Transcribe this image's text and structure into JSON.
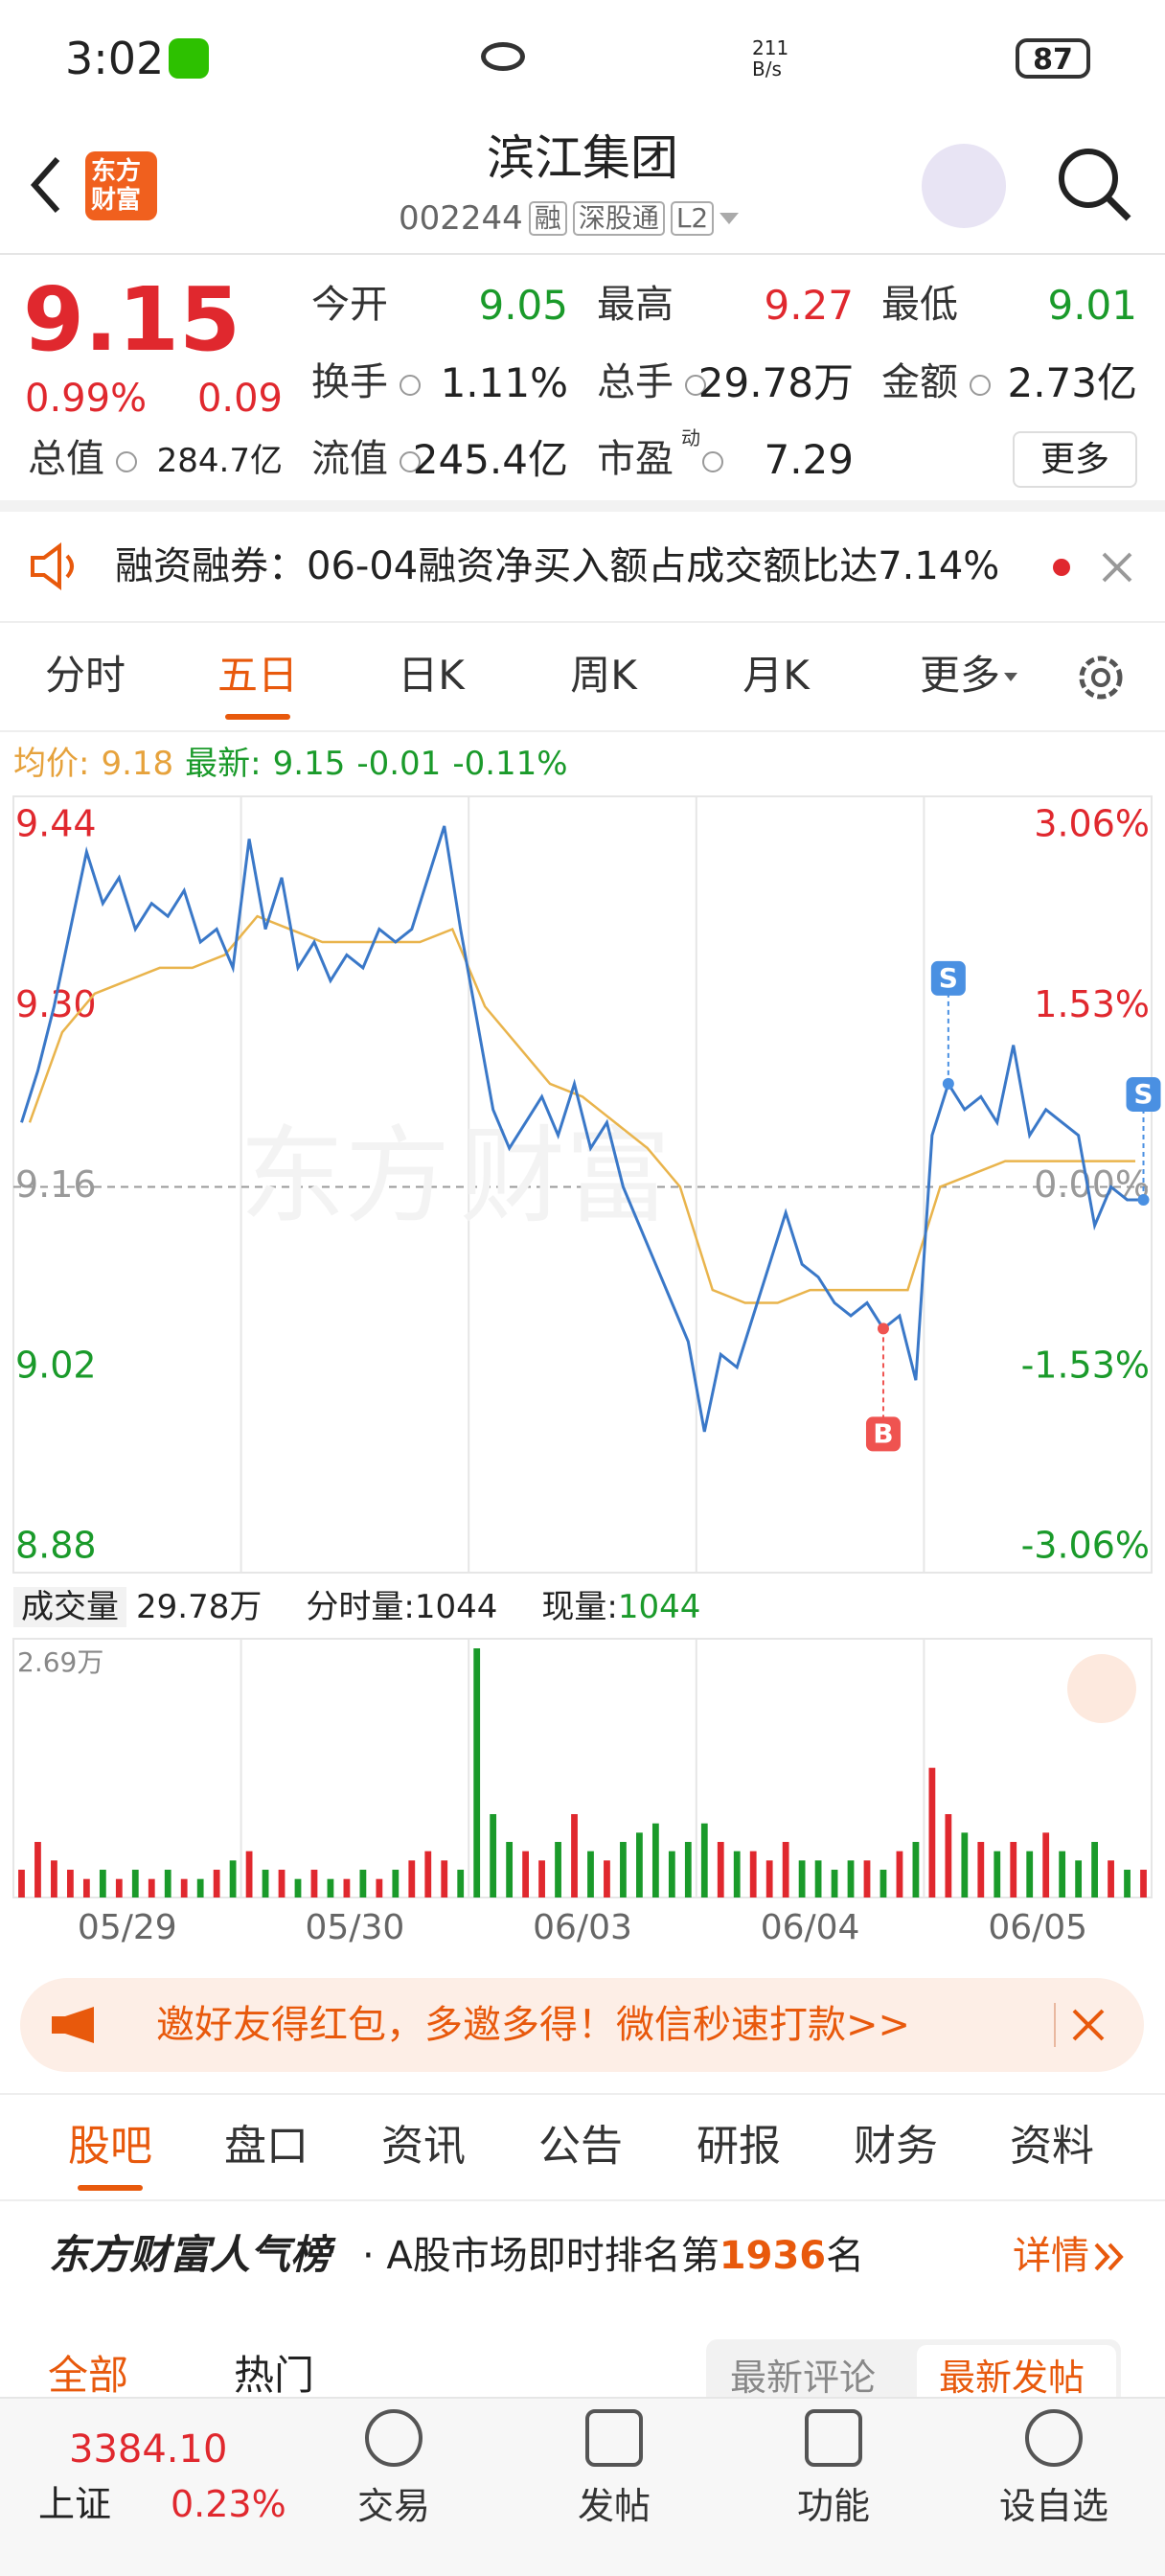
{
  "status_bar": {
    "time": "3:02",
    "net_speed_value": "211",
    "net_speed_unit": "B/s",
    "battery": "87"
  },
  "header": {
    "logo": [
      "东方",
      "财富"
    ],
    "title": "滨江集团",
    "code": "002244",
    "badges": [
      "融",
      "深股通",
      "L2"
    ]
  },
  "quote": {
    "price": "9.15",
    "change_pct": "0.99%",
    "change": "0.09",
    "fields": [
      {
        "label": "今开",
        "value": "9.05"
      },
      {
        "label": "最高",
        "value": "9.27"
      },
      {
        "label": "最低",
        "value": "9.01"
      },
      {
        "label": "换手",
        "value": "1.11%"
      },
      {
        "label": "总手",
        "value": "29.78万"
      },
      {
        "label": "金额",
        "value": "2.73亿"
      },
      {
        "label": "总值",
        "value": "284.7亿"
      },
      {
        "label": "流值",
        "value": "245.4亿"
      },
      {
        "label": "市盈",
        "sup": "动",
        "value": "7.29"
      }
    ],
    "more": "更多"
  },
  "notice": "融资融券：06-04融资净买入额占成交额比达7.14%",
  "tabs": [
    "分时",
    "五日",
    "日K",
    "周K",
    "月K",
    "更多"
  ],
  "active_tab": 1,
  "legend": {
    "avg_label": "均价:",
    "avg": "9.18",
    "latest_label": "最新:",
    "latest": "9.15",
    "change": "-0.01",
    "change_pct": "-0.11%"
  },
  "chart": {
    "type": "line",
    "x": [
      "05/29",
      "05/30",
      "06/03",
      "06/04",
      "06/05"
    ],
    "ylim": [
      8.88,
      9.44
    ],
    "yticks": [
      9.44,
      {
        "value": 9.3,
        "label": "9.30"
      },
      9.16,
      9.02,
      8.88
    ],
    "y2lim": [
      -3.06,
      3.06
    ],
    "y2ticks": [
      {
        "value": 3.06,
        "label": "3.06%"
      },
      {
        "value": 1.53,
        "label": "1.53%"
      },
      {
        "value": 0,
        "label": "0.00%"
      },
      {
        "value": -1.53,
        "label": "-1.53%"
      },
      {
        "value": -3.06,
        "label": "-3.06%"
      }
    ],
    "price": {
      "color": "#3a78c8",
      "values": [
        9.21,
        9.25,
        9.3,
        9.36,
        9.42,
        9.38,
        9.4,
        9.36,
        9.38,
        9.37,
        9.39,
        9.35,
        9.36,
        9.33,
        9.43,
        9.36,
        9.4,
        9.33,
        9.35,
        9.32,
        9.34,
        9.33,
        9.36,
        9.35,
        9.36,
        9.4,
        9.44,
        9.36,
        9.29,
        9.22,
        9.19,
        9.21,
        9.23,
        9.2,
        9.24,
        9.19,
        9.21,
        9.16,
        9.13,
        9.1,
        9.07,
        9.04,
        8.97,
        9.03,
        9.02,
        9.06,
        9.1,
        9.14,
        9.1,
        9.09,
        9.07,
        9.06,
        9.07,
        9.05,
        9.06,
        9.01,
        9.2,
        9.24,
        9.22,
        9.23,
        9.21,
        9.27,
        9.2,
        9.22,
        9.21,
        9.2,
        9.13,
        9.16,
        9.15,
        9.15
      ]
    },
    "average": {
      "color": "#e9b44c",
      "values": [
        9.21,
        9.28,
        9.31,
        9.32,
        9.33,
        9.33,
        9.34,
        9.37,
        9.36,
        9.35,
        9.35,
        9.35,
        9.35,
        9.36,
        9.3,
        9.27,
        9.24,
        9.23,
        9.21,
        9.19,
        9.16,
        9.08,
        9.07,
        9.07,
        9.08,
        9.08,
        9.08,
        9.08,
        9.16,
        9.17,
        9.18,
        9.18,
        9.18,
        9.18,
        9.18
      ]
    },
    "markers": [
      {
        "label": "S",
        "index": 57
      },
      {
        "label": "S",
        "index": 69
      },
      {
        "label": "B",
        "index": 53
      }
    ]
  },
  "volume": {
    "label": "成交量",
    "total": "29.78万",
    "tick_qty_label": "分时量:",
    "tick_qty": "1044",
    "current_label": "现量:",
    "current": "1044",
    "ylim": [
      0,
      2.69
    ],
    "yticks": [
      {
        "value": 2.69,
        "label": "2.69万"
      }
    ],
    "values": [
      0.3,
      0.6,
      0.4,
      0.3,
      0.2,
      0.3,
      0.2,
      0.3,
      0.2,
      0.3,
      0.2,
      0.2,
      0.3,
      0.4,
      0.5,
      0.3,
      0.3,
      0.2,
      0.3,
      0.2,
      0.2,
      0.3,
      0.2,
      0.3,
      0.4,
      0.5,
      0.4,
      0.3,
      2.69,
      0.9,
      0.6,
      0.5,
      0.4,
      0.6,
      0.9,
      0.5,
      0.4,
      0.6,
      0.7,
      0.8,
      0.5,
      0.6,
      0.8,
      0.6,
      0.5,
      0.5,
      0.4,
      0.6,
      0.4,
      0.4,
      0.3,
      0.4,
      0.4,
      0.3,
      0.5,
      0.6,
      1.4,
      0.9,
      0.7,
      0.6,
      0.5,
      0.6,
      0.5,
      0.7,
      0.5,
      0.4,
      0.6,
      0.4,
      0.3,
      0.3
    ]
  },
  "banner": "邀好友得红包，多邀多得！微信秒速打款>>",
  "sections": [
    "股吧",
    "盘口",
    "资讯",
    "公告",
    "研报",
    "财务",
    "资料"
  ],
  "ranking": {
    "brand": "东方财富人气榜",
    "text_before": "· A股市场即时排名第",
    "rank": "1936",
    "text_after": "名",
    "link": "详情"
  },
  "subtabs": [
    "全部",
    "热门"
  ],
  "sort": [
    "最新评论",
    "最新发帖"
  ],
  "bottom": {
    "index_value": "3384.10",
    "index_name": "上证",
    "index_change": "0.23%",
    "nav": [
      "交易",
      "发帖",
      "功能",
      "设自选"
    ]
  }
}
